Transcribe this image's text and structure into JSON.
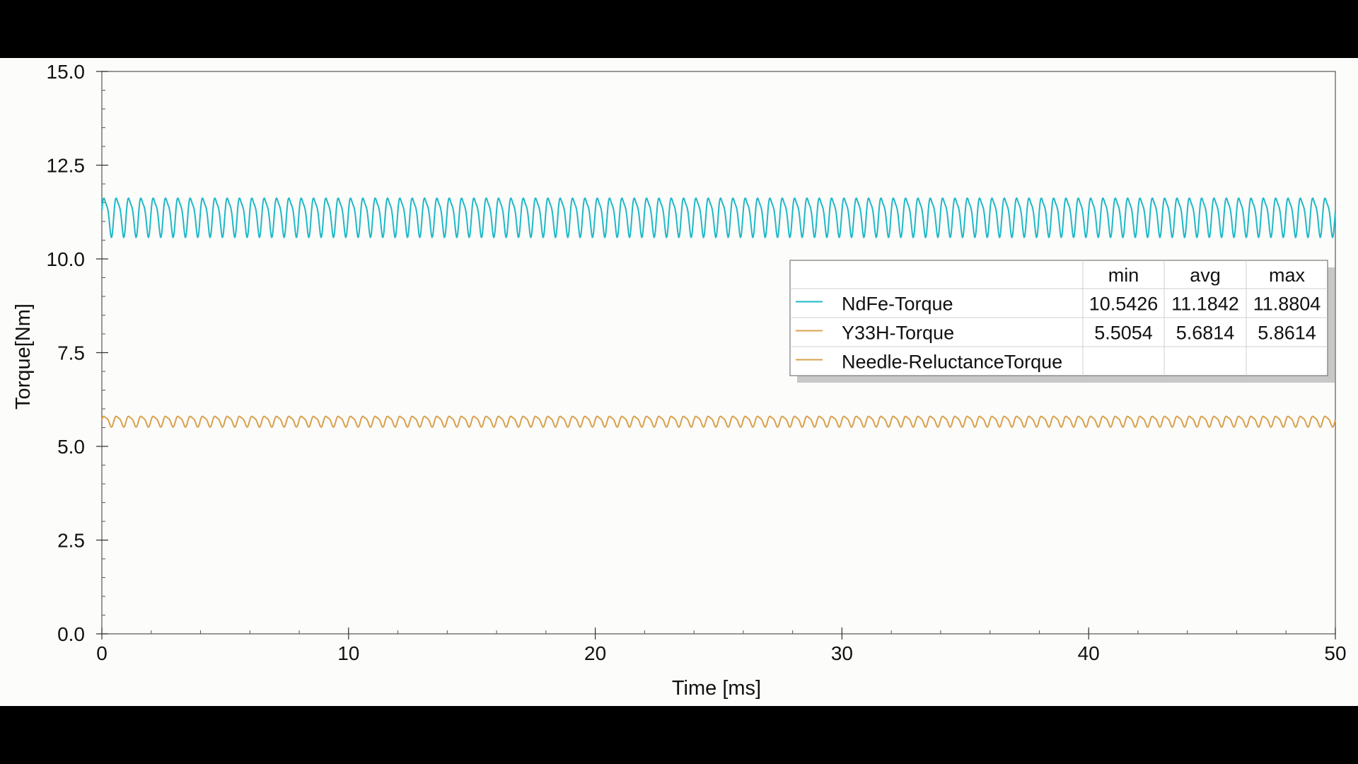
{
  "chart_data": {
    "type": "line",
    "xlabel": "Time [ms]",
    "ylabel": "Torque[Nm]",
    "xlim": [
      0,
      50
    ],
    "ylim": [
      0,
      15
    ],
    "xticks": [
      0,
      10,
      20,
      30,
      40,
      50
    ],
    "yticks": [
      0,
      2.5,
      5,
      7.5,
      10,
      12.5,
      15
    ],
    "xtick_labels": [
      "0",
      "10",
      "20",
      "30",
      "40",
      "50"
    ],
    "ytick_labels": [
      "0.0",
      "2.5",
      "5.0",
      "7.5",
      "10.0",
      "12.5",
      "15.0"
    ],
    "series": [
      {
        "name": "NdFe-Torque",
        "color": "#1eb8c8",
        "mean": 11.18,
        "amplitude": 0.62,
        "ripple_period_ms": 0.5,
        "stats": {
          "min": "10.5426",
          "avg": "11.1842",
          "max": "11.8804"
        }
      },
      {
        "name": "Y33H-Torque",
        "color": "#d9a04c",
        "mean": 5.68,
        "amplitude": 0.17,
        "ripple_period_ms": 0.5,
        "stats": {
          "min": "5.5054",
          "avg": "5.6814",
          "max": "5.8614"
        }
      },
      {
        "name": "Needle-ReluctanceTorque",
        "color": "#d9a04c",
        "stats": {
          "min": "",
          "avg": "",
          "max": ""
        }
      }
    ],
    "legend": {
      "position": "center-right",
      "columns": [
        "min",
        "avg",
        "max"
      ]
    }
  }
}
